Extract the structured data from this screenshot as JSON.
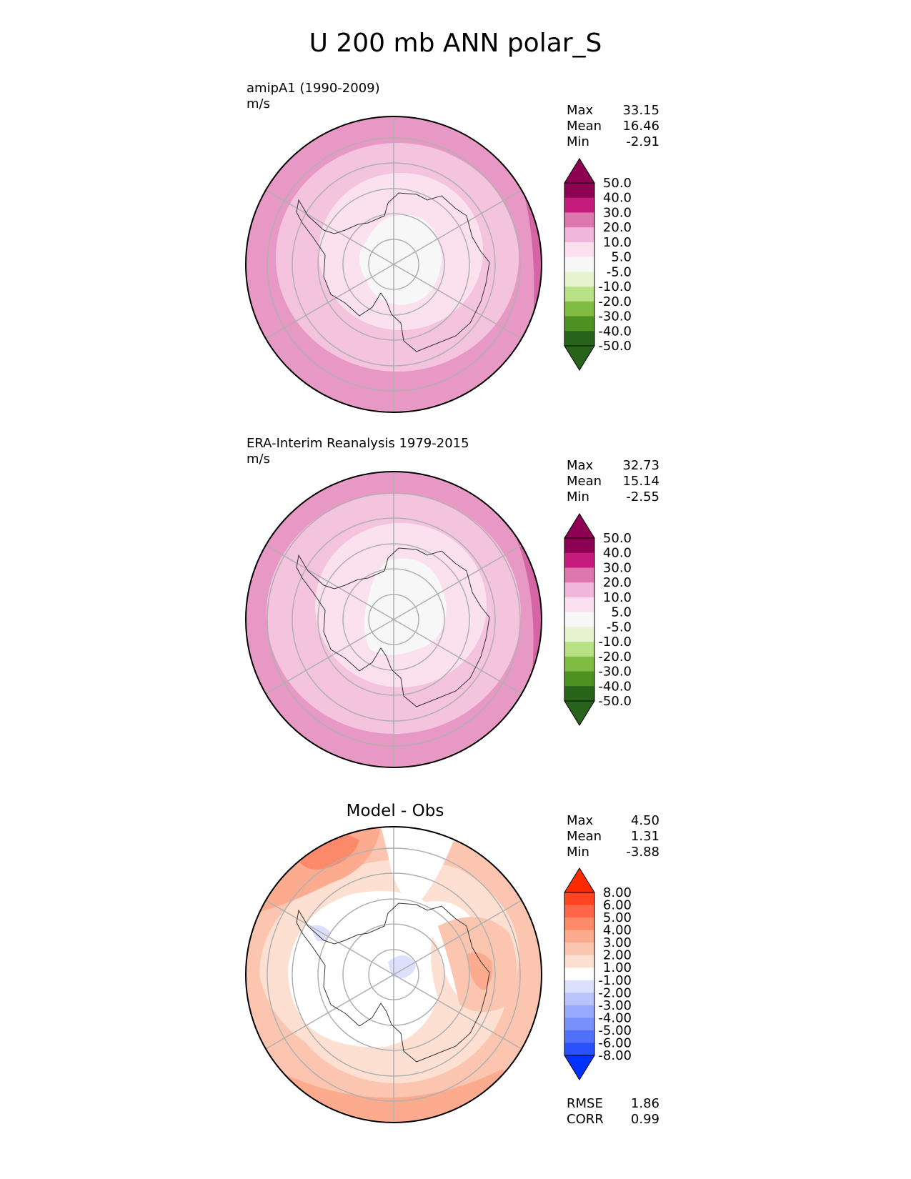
{
  "title": "U 200 mb ANN polar_S",
  "panels": [
    {
      "id": "test",
      "title_line1": "amipA1 (1990-2009)",
      "title_line2": "m/s",
      "stats": [
        {
          "label": "Max",
          "value": "33.15"
        },
        {
          "label": "Mean",
          "value": "16.46"
        },
        {
          "label": "Min",
          "value": "-2.91"
        }
      ],
      "colorbar": {
        "ticks": [
          "50.0",
          "40.0",
          "30.0",
          "20.0",
          "10.0",
          "5.0",
          "-5.0",
          "-10.0",
          "-20.0",
          "-30.0",
          "-40.0",
          "-50.0"
        ],
        "colors": [
          "#8e0152",
          "#c51b7d",
          "#de77ae",
          "#f1b6da",
          "#fde0ef",
          "#f7f7f7",
          "#e6f5d0",
          "#b8e186",
          "#7fbc41",
          "#4d9221",
          "#276419"
        ],
        "extend_top": "#8e0152",
        "extend_bottom": "#276419"
      }
    },
    {
      "id": "reference",
      "title_line1": "ERA-Interim Reanalysis 1979-2015",
      "title_line2": "m/s",
      "stats": [
        {
          "label": "Max",
          "value": "32.73"
        },
        {
          "label": "Mean",
          "value": "15.14"
        },
        {
          "label": "Min",
          "value": "-2.55"
        }
      ],
      "colorbar": {
        "ticks": [
          "50.0",
          "40.0",
          "30.0",
          "20.0",
          "10.0",
          "5.0",
          "-5.0",
          "-10.0",
          "-20.0",
          "-30.0",
          "-40.0",
          "-50.0"
        ],
        "colors": [
          "#8e0152",
          "#c51b7d",
          "#de77ae",
          "#f1b6da",
          "#fde0ef",
          "#f7f7f7",
          "#e6f5d0",
          "#b8e186",
          "#7fbc41",
          "#4d9221",
          "#276419"
        ],
        "extend_top": "#8e0152",
        "extend_bottom": "#276419"
      }
    },
    {
      "id": "diff",
      "title_center": "Model - Obs",
      "stats": [
        {
          "label": "Max",
          "value": "4.50"
        },
        {
          "label": "Mean",
          "value": "1.31"
        },
        {
          "label": "Min",
          "value": "-3.88"
        }
      ],
      "colorbar": {
        "ticks": [
          "8.00",
          "6.00",
          "5.00",
          "4.00",
          "3.00",
          "2.00",
          "1.00",
          "-1.00",
          "-2.00",
          "-3.00",
          "-4.00",
          "-5.00",
          "-6.00",
          "-8.00"
        ],
        "colors": [
          "#ff4422",
          "#ff6649",
          "#fc8a6a",
          "#fcab8f",
          "#fcc5b0",
          "#fee0d2",
          "#ffffff",
          "#dce0fc",
          "#b8c4fc",
          "#98a8fc",
          "#7890fc",
          "#5070fc",
          "#2a52fc"
        ],
        "extend_top": "#ff2a00",
        "extend_bottom": "#0032ff"
      },
      "bottom_stats": [
        {
          "label": "RMSE",
          "value": "1.86"
        },
        {
          "label": "CORR",
          "value": "0.99"
        }
      ]
    }
  ]
}
